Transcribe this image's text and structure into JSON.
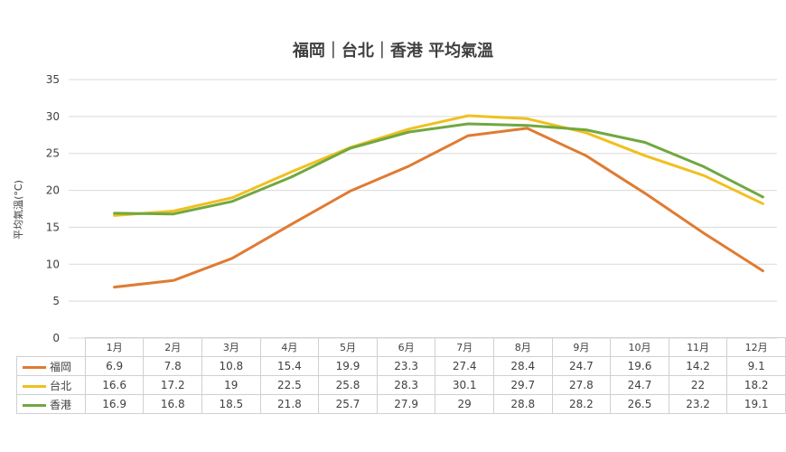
{
  "chart_data": {
    "type": "line",
    "title": "福岡｜台北｜香港 平均氣溫",
    "ylabel": "平均氣溫(°C)",
    "xlabel": "",
    "ylim": [
      0,
      35
    ],
    "yticks": [
      "0",
      "5",
      "10",
      "15",
      "20",
      "25",
      "30",
      "35"
    ],
    "grid": true,
    "legend": "data table below chart",
    "categories": [
      "1月",
      "2月",
      "3月",
      "4月",
      "5月",
      "6月",
      "7月",
      "8月",
      "9月",
      "10月",
      "11月",
      "12月"
    ],
    "series": [
      {
        "name": "福岡",
        "color": "#e07b32",
        "values": [
          6.9,
          7.8,
          10.8,
          15.4,
          19.9,
          23.3,
          27.4,
          28.4,
          24.7,
          19.6,
          14.2,
          9.1
        ]
      },
      {
        "name": "台北",
        "color": "#f0c020",
        "values": [
          16.6,
          17.2,
          19,
          22.5,
          25.8,
          28.3,
          30.1,
          29.7,
          27.8,
          24.7,
          22,
          18.2
        ]
      },
      {
        "name": "香港",
        "color": "#70a840",
        "values": [
          16.9,
          16.8,
          18.5,
          21.8,
          25.7,
          27.9,
          29,
          28.8,
          28.2,
          26.5,
          23.2,
          19.1
        ]
      }
    ]
  }
}
